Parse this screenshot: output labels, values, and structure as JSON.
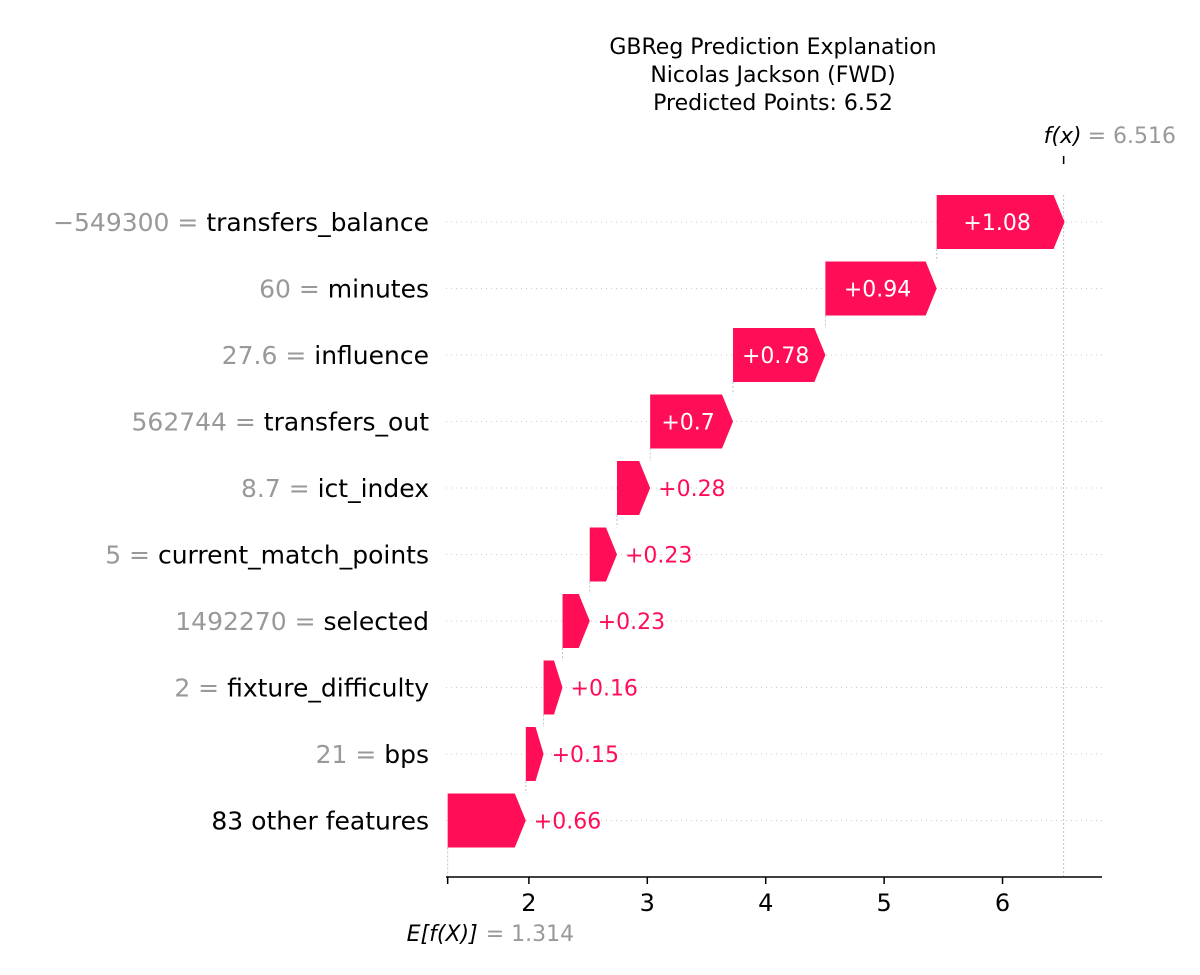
{
  "chart_data": {
    "type": "waterfall",
    "title_lines": [
      "GBReg Prediction Explanation",
      "Nicolas Jackson (FWD)",
      "Predicted Points: 6.52"
    ],
    "base_value": 1.314,
    "base_label": "E[f(X)]",
    "base_value_text": "= 1.314",
    "output_value": 6.516,
    "output_label": "f(x)",
    "output_value_text": "= 6.516",
    "x_ticks": [
      2,
      3,
      4,
      5,
      6
    ],
    "xlim": [
      1.3,
      6.84
    ],
    "positive_color": "#ff0d57",
    "features": [
      {
        "value_text": "−549300 =",
        "name": "transfers_balance",
        "contribution": 1.08,
        "label": "+1.08"
      },
      {
        "value_text": "60 =",
        "name": "minutes",
        "contribution": 0.94,
        "label": "+0.94"
      },
      {
        "value_text": "27.6 =",
        "name": "influence",
        "contribution": 0.78,
        "label": "+0.78"
      },
      {
        "value_text": "562744 =",
        "name": "transfers_out",
        "contribution": 0.7,
        "label": "+0.7"
      },
      {
        "value_text": "8.7 =",
        "name": "ict_index",
        "contribution": 0.28,
        "label": "+0.28"
      },
      {
        "value_text": "5 =",
        "name": "current_match_points",
        "contribution": 0.23,
        "label": "+0.23"
      },
      {
        "value_text": "1492270 =",
        "name": "selected",
        "contribution": 0.23,
        "label": "+0.23"
      },
      {
        "value_text": "2 =",
        "name": "fixture_difficulty",
        "contribution": 0.16,
        "label": "+0.16"
      },
      {
        "value_text": "21 =",
        "name": "bps",
        "contribution": 0.15,
        "label": "+0.15"
      },
      {
        "value_text": "",
        "name": "83 other features",
        "contribution": 0.66,
        "label": "+0.66"
      }
    ]
  }
}
